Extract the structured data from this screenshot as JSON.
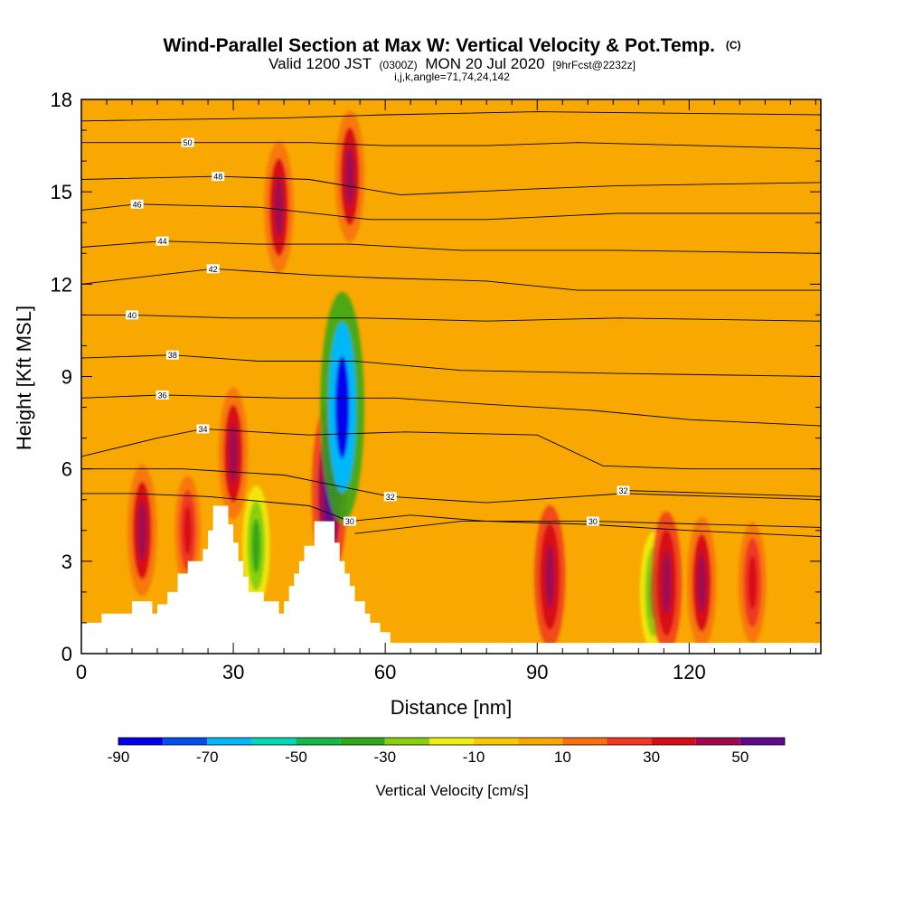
{
  "chart_data": {
    "type": "heatmap",
    "title": "Wind-Parallel Section at Max W: Vertical Velocity & Pot.Temp.",
    "title_unit": "(C)",
    "subtitle_prefix": "Valid 1200 JST",
    "subtitle_time": "(0300Z)",
    "subtitle_date": "MON 20 Jul 2020",
    "subtitle_fcst": "[9hrFcst@2232z]",
    "subtitle_line2": "i,j,k,angle=71,74,24,142",
    "xlabel": "Distance [nm]",
    "ylabel": "Height [Kft MSL]",
    "xlim": [
      0,
      146
    ],
    "ylim": [
      0,
      18
    ],
    "x_ticks": [
      0,
      30,
      60,
      90,
      120
    ],
    "y_ticks": [
      0,
      3,
      6,
      9,
      12,
      15,
      18
    ],
    "colorbar": {
      "label": "Vertical Velocity [cm/s]",
      "levels": [
        -90,
        -80,
        -70,
        -60,
        -50,
        -40,
        -30,
        -20,
        -10,
        0,
        10,
        20,
        30,
        40,
        50,
        60
      ],
      "tick_labels": [
        -90,
        -70,
        -50,
        -30,
        -10,
        10,
        30,
        50
      ],
      "colors": [
        "#0000ee",
        "#0050f0",
        "#00b8f8",
        "#00d8b8",
        "#18b848",
        "#30a818",
        "#88d010",
        "#f0f010",
        "#f8c800",
        "#f8a800",
        "#f87010",
        "#f03820",
        "#d80c18",
        "#a00850",
        "#600890"
      ]
    },
    "background_w_class": "0 to 10 cm/s",
    "terrain": [
      [
        0,
        1.0
      ],
      [
        4,
        1.0
      ],
      [
        4,
        1.3
      ],
      [
        10,
        1.3
      ],
      [
        10,
        1.7
      ],
      [
        14,
        1.7
      ],
      [
        14,
        1.3
      ],
      [
        15,
        1.3
      ],
      [
        15,
        1.6
      ],
      [
        17,
        1.6
      ],
      [
        17,
        2.0
      ],
      [
        19,
        2.0
      ],
      [
        19,
        2.6
      ],
      [
        21,
        2.6
      ],
      [
        21,
        3.0
      ],
      [
        24,
        3.0
      ],
      [
        24,
        3.4
      ],
      [
        25,
        3.4
      ],
      [
        25,
        4.0
      ],
      [
        26,
        4.0
      ],
      [
        26,
        4.8
      ],
      [
        29,
        4.8
      ],
      [
        29,
        4.2
      ],
      [
        30,
        4.2
      ],
      [
        30,
        3.6
      ],
      [
        31,
        3.6
      ],
      [
        31,
        3.0
      ],
      [
        32,
        3.0
      ],
      [
        32,
        2.5
      ],
      [
        33,
        2.5
      ],
      [
        33,
        2.0
      ],
      [
        36,
        2.0
      ],
      [
        36,
        1.7
      ],
      [
        39,
        1.7
      ],
      [
        39,
        1.3
      ],
      [
        40,
        1.3
      ],
      [
        40,
        1.7
      ],
      [
        41,
        1.7
      ],
      [
        41,
        2.2
      ],
      [
        42,
        2.2
      ],
      [
        42,
        2.6
      ],
      [
        43,
        2.6
      ],
      [
        43,
        3.0
      ],
      [
        44,
        3.0
      ],
      [
        44,
        3.5
      ],
      [
        46,
        3.5
      ],
      [
        46,
        4.3
      ],
      [
        50,
        4.3
      ],
      [
        50,
        3.6
      ],
      [
        51,
        3.6
      ],
      [
        51,
        3.0
      ],
      [
        52,
        3.0
      ],
      [
        52,
        2.6
      ],
      [
        53,
        2.6
      ],
      [
        53,
        2.2
      ],
      [
        54,
        2.2
      ],
      [
        54,
        1.7
      ],
      [
        56,
        1.7
      ],
      [
        56,
        1.3
      ],
      [
        57,
        1.3
      ],
      [
        57,
        1.0
      ],
      [
        59,
        1.0
      ],
      [
        59,
        0.7
      ],
      [
        61,
        0.7
      ],
      [
        61,
        0.35
      ],
      [
        146,
        0.35
      ]
    ],
    "w_features": [
      {
        "x": 12,
        "y": 4.0,
        "w_cms": 40
      },
      {
        "x": 21,
        "y": 4.0,
        "w_cms": 30
      },
      {
        "x": 30,
        "y": 6.5,
        "w_cms": 40
      },
      {
        "x": 34.5,
        "y": 3.5,
        "w_cms": -35
      },
      {
        "x": 49,
        "y": 5.3,
        "w_cms": 60
      },
      {
        "x": 51.5,
        "y": 8.0,
        "w_cms": -85
      },
      {
        "x": 53,
        "y": 15.5,
        "w_cms": 40
      },
      {
        "x": 39,
        "y": 14.5,
        "w_cms": 40
      },
      {
        "x": 92.5,
        "y": 2.5,
        "w_cms": 45
      },
      {
        "x": 113,
        "y": 2.0,
        "w_cms": -35
      },
      {
        "x": 115.5,
        "y": 2.3,
        "w_cms": 45
      },
      {
        "x": 122.5,
        "y": 2.3,
        "w_cms": 40
      },
      {
        "x": 132.5,
        "y": 2.3,
        "w_cms": 35
      }
    ],
    "theta_contours": [
      {
        "label": "30",
        "label_x": 53,
        "pts": [
          [
            0,
            5.2
          ],
          [
            10,
            5.2
          ],
          [
            25,
            5.1
          ],
          [
            45,
            4.8
          ],
          [
            53,
            4.3
          ],
          [
            65,
            4.5
          ],
          [
            80,
            4.3
          ],
          [
            100,
            4.2
          ],
          [
            120,
            4.0
          ],
          [
            146,
            3.8
          ]
        ]
      },
      {
        "label": "30",
        "label_x": 101,
        "pts": [
          [
            54,
            3.9
          ],
          [
            75,
            4.3
          ],
          [
            101,
            4.3
          ],
          [
            146,
            4.1
          ]
        ]
      },
      {
        "label": "32",
        "label_x": 61,
        "pts": [
          [
            0,
            6.0
          ],
          [
            20,
            6.0
          ],
          [
            40,
            5.8
          ],
          [
            61,
            5.1
          ],
          [
            80,
            4.9
          ],
          [
            107,
            5.2
          ],
          [
            146,
            5.0
          ]
        ]
      },
      {
        "label": "32",
        "label_x": 107,
        "pts": [
          [
            107,
            5.3
          ],
          [
            146,
            5.1
          ]
        ]
      },
      {
        "label": "34",
        "label_x": 24,
        "pts": [
          [
            0,
            6.4
          ],
          [
            15,
            7.0
          ],
          [
            24,
            7.3
          ],
          [
            45,
            7.1
          ],
          [
            64,
            7.2
          ],
          [
            90,
            7.1
          ],
          [
            103,
            6.1
          ],
          [
            120,
            6.0
          ],
          [
            146,
            6.0
          ]
        ]
      },
      {
        "label": "36",
        "label_x": 16,
        "pts": [
          [
            0,
            8.3
          ],
          [
            16,
            8.4
          ],
          [
            40,
            8.3
          ],
          [
            62,
            8.3
          ],
          [
            80,
            8.1
          ],
          [
            101,
            7.9
          ],
          [
            120,
            7.6
          ],
          [
            146,
            7.4
          ]
        ]
      },
      {
        "label": "38",
        "label_x": 18,
        "pts": [
          [
            0,
            9.6
          ],
          [
            18,
            9.7
          ],
          [
            35,
            9.5
          ],
          [
            54,
            9.5
          ],
          [
            75,
            9.2
          ],
          [
            106,
            9.1
          ],
          [
            146,
            9.0
          ]
        ]
      },
      {
        "label": "40",
        "label_x": 10,
        "pts": [
          [
            0,
            11.0
          ],
          [
            10,
            11.0
          ],
          [
            30,
            10.9
          ],
          [
            56,
            10.9
          ],
          [
            80,
            10.8
          ],
          [
            106,
            10.9
          ],
          [
            146,
            10.8
          ]
        ]
      },
      {
        "label": "42",
        "label_x": 26,
        "pts": [
          [
            0,
            12.0
          ],
          [
            26,
            12.5
          ],
          [
            45,
            12.3
          ],
          [
            59,
            12.2
          ],
          [
            80,
            12.1
          ],
          [
            98,
            11.8
          ],
          [
            146,
            11.8
          ]
        ]
      },
      {
        "label": "44",
        "label_x": 16,
        "pts": [
          [
            0,
            13.2
          ],
          [
            16,
            13.4
          ],
          [
            35,
            13.3
          ],
          [
            53,
            13.3
          ],
          [
            75,
            13.1
          ],
          [
            106,
            13.1
          ],
          [
            146,
            13.0
          ]
        ]
      },
      {
        "label": "46",
        "label_x": 11,
        "pts": [
          [
            0,
            14.4
          ],
          [
            11,
            14.6
          ],
          [
            35,
            14.5
          ],
          [
            57,
            14.1
          ],
          [
            80,
            14.1
          ],
          [
            106,
            14.3
          ],
          [
            146,
            14.3
          ]
        ]
      },
      {
        "label": "48",
        "label_x": 27,
        "pts": [
          [
            0,
            15.4
          ],
          [
            27,
            15.5
          ],
          [
            45,
            15.4
          ],
          [
            63,
            14.9
          ],
          [
            90,
            15.1
          ],
          [
            106,
            15.2
          ],
          [
            146,
            15.3
          ]
        ]
      },
      {
        "label": "50",
        "label_x": 21,
        "pts": [
          [
            0,
            16.6
          ],
          [
            21,
            16.6
          ],
          [
            45,
            16.6
          ],
          [
            60,
            16.5
          ],
          [
            80,
            16.5
          ],
          [
            98,
            16.6
          ],
          [
            146,
            16.4
          ]
        ]
      },
      {
        "label": "",
        "label_x": 0,
        "pts": [
          [
            0,
            17.3
          ],
          [
            40,
            17.4
          ],
          [
            60,
            17.5
          ],
          [
            90,
            17.6
          ],
          [
            146,
            17.5
          ]
        ]
      }
    ]
  }
}
